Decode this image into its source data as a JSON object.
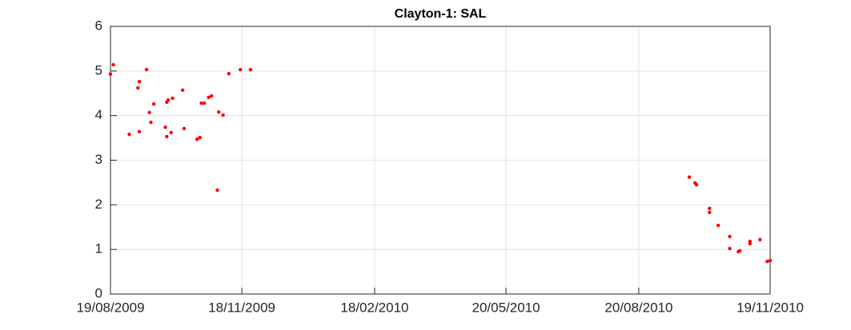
{
  "chart_data": {
    "type": "scatter",
    "title": "Clayton-1: SAL",
    "color": "#ff0000",
    "grid": true,
    "x": [
      "2009-08-19",
      "2009-08-21",
      "2009-09-01",
      "2009-09-07",
      "2009-09-08",
      "2009-09-08",
      "2009-09-13",
      "2009-09-15",
      "2009-09-16",
      "2009-09-18",
      "2009-09-26",
      "2009-09-27",
      "2009-09-27",
      "2009-09-28",
      "2009-09-30",
      "2009-10-01",
      "2009-10-08",
      "2009-10-09",
      "2009-10-18",
      "2009-10-20",
      "2009-10-21",
      "2009-10-23",
      "2009-10-26",
      "2009-10-28",
      "2009-11-01",
      "2009-11-02",
      "2009-11-05",
      "2009-11-09",
      "2009-11-17",
      "2009-11-24",
      "2010-09-24",
      "2010-09-28",
      "2010-09-29",
      "2010-10-08",
      "2010-10-08",
      "2010-10-14",
      "2010-10-22",
      "2010-10-22",
      "2010-10-28",
      "2010-10-29",
      "2010-11-05",
      "2010-11-05",
      "2010-11-12",
      "2010-11-17",
      "2010-11-19"
    ],
    "values": [
      4.93,
      5.14,
      3.58,
      4.62,
      4.76,
      3.64,
      5.03,
      4.07,
      3.85,
      4.26,
      3.74,
      4.3,
      3.53,
      4.35,
      3.62,
      4.39,
      4.57,
      3.71,
      3.47,
      3.51,
      4.28,
      4.28,
      4.41,
      4.44,
      2.33,
      4.08,
      4.01,
      4.94,
      5.03,
      5.03,
      2.62,
      2.49,
      2.45,
      1.92,
      1.83,
      1.54,
      1.29,
      1.02,
      0.95,
      0.97,
      1.18,
      1.13,
      1.22,
      0.73,
      0.75
    ],
    "xlim": [
      "2009-08-19",
      "2010-11-19"
    ],
    "xticks": [
      {
        "value": "2009-08-19",
        "label": "19/08/2009"
      },
      {
        "value": "2009-11-18",
        "label": "18/11/2009"
      },
      {
        "value": "2010-02-18",
        "label": "18/02/2010"
      },
      {
        "value": "2010-05-20",
        "label": "20/05/2010"
      },
      {
        "value": "2010-08-20",
        "label": "20/08/2010"
      },
      {
        "value": "2010-11-19",
        "label": "19/11/2010"
      }
    ],
    "ylim": [
      0,
      6
    ],
    "yticks": [
      0,
      1,
      2,
      3,
      4,
      5,
      6
    ]
  }
}
